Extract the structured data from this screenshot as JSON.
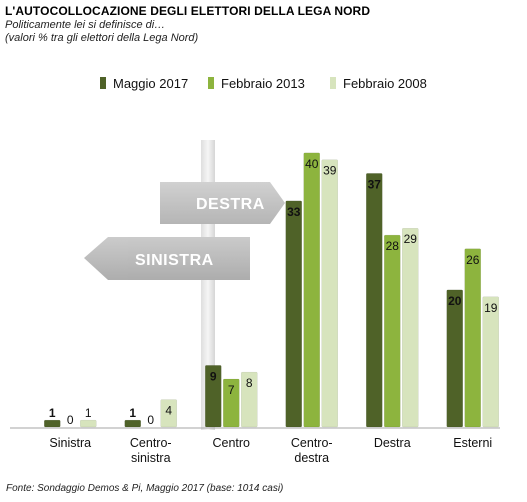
{
  "header": {
    "title": "L'AUTOCOLLOCAZIONE  DEGLI ELETTORI DELLA LEGA NORD",
    "subtitle1": "Politicamente lei si definisce di…",
    "subtitle2": "(valori % tra gli elettori della Lega Nord)"
  },
  "footer": {
    "source": "Fonte: Sondaggio Demos & Pi, Maggio 2017 (base: 1014 casi)"
  },
  "sign": {
    "upper": "DESTRA",
    "lower": "SINISTRA"
  },
  "chart_data": {
    "type": "bar",
    "categories": [
      [
        "Sinistra"
      ],
      [
        "Centro-",
        "sinistra"
      ],
      [
        "Centro"
      ],
      [
        "Centro-",
        "destra"
      ],
      [
        "Destra"
      ],
      [
        "Esterni"
      ]
    ],
    "series": [
      {
        "name": "Maggio 2017",
        "values": [
          1,
          1,
          9,
          33,
          37,
          20
        ],
        "color": "#4f6228"
      },
      {
        "name": "Febbraio 2013",
        "values": [
          0,
          0,
          7,
          40,
          28,
          26
        ],
        "color": "#8db43e"
      },
      {
        "name": "Febbraio 2008",
        "values": [
          1,
          4,
          8,
          39,
          29,
          19
        ],
        "color": "#d7e4bd"
      }
    ],
    "legend_position": "top-center",
    "grid": false,
    "ylim": [
      0,
      41
    ]
  }
}
